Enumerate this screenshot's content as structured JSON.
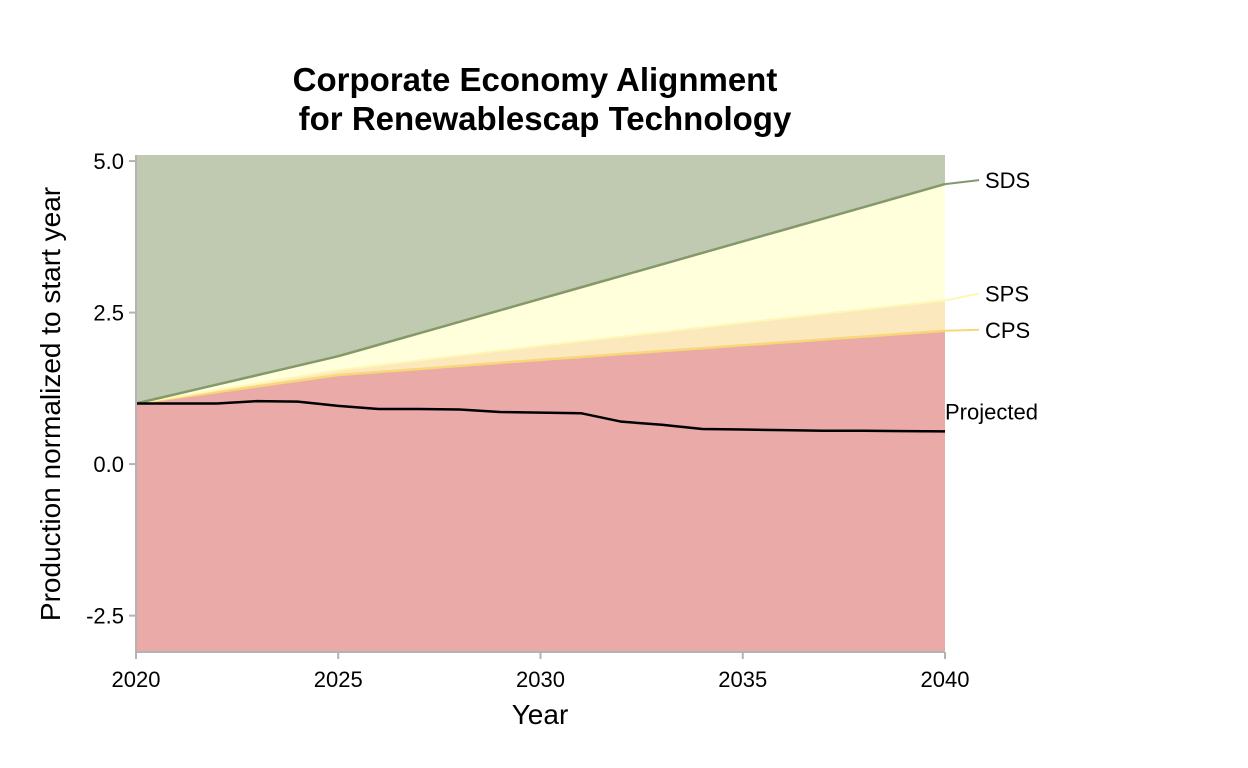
{
  "chart_data": {
    "type": "area",
    "title": "Corporate Economy Alignment",
    "subtitle": "for Renewablescap Technology",
    "xlabel": "Year",
    "ylabel": "Production normalized to start year",
    "xlim": [
      2020,
      2040
    ],
    "ylim": [
      -3.1,
      5.1
    ],
    "x_ticks": [
      2020,
      2025,
      2030,
      2035,
      2040
    ],
    "y_ticks": [
      {
        "value": 5.0,
        "label": "5.0"
      },
      {
        "value": 2.5,
        "label": "2.5"
      },
      {
        "value": 0.0,
        "label": "0.0"
      },
      {
        "value": -2.5,
        "label": "-2.5"
      }
    ],
    "grid": false,
    "legend": "direct labels at right end of lines",
    "colors": {
      "sds_band": "#c0cab0",
      "sds_line": "#83996a",
      "sps_band": "#ffffdc",
      "sps_line": "#fff7b5",
      "cps_band": "#fbe8bc",
      "cps_line": "#f8d67a",
      "below_band": "#e9aaa8",
      "projected_line": "#000000"
    },
    "scenarios": [
      {
        "name": "SDS",
        "x": [
          2020,
          2025,
          2040
        ],
        "values": [
          1.0,
          1.78,
          4.62
        ]
      },
      {
        "name": "SPS",
        "x": [
          2020,
          2025,
          2030,
          2035,
          2040
        ],
        "values": [
          1.0,
          1.55,
          1.95,
          2.33,
          2.7
        ]
      },
      {
        "name": "CPS",
        "x": [
          2020,
          2025,
          2030,
          2035,
          2040
        ],
        "values": [
          1.0,
          1.47,
          1.72,
          1.96,
          2.2
        ]
      }
    ],
    "projected": {
      "name": "Projected",
      "x": [
        2020,
        2021,
        2022,
        2023,
        2024,
        2025,
        2026,
        2027,
        2028,
        2029,
        2030,
        2031,
        2032,
        2033,
        2034,
        2035,
        2036,
        2037,
        2038,
        2039,
        2040
      ],
      "values": [
        1.0,
        1.0,
        1.0,
        1.04,
        1.03,
        0.96,
        0.91,
        0.91,
        0.9,
        0.86,
        0.85,
        0.84,
        0.7,
        0.65,
        0.58,
        0.57,
        0.56,
        0.55,
        0.55,
        0.545,
        0.54
      ]
    }
  }
}
